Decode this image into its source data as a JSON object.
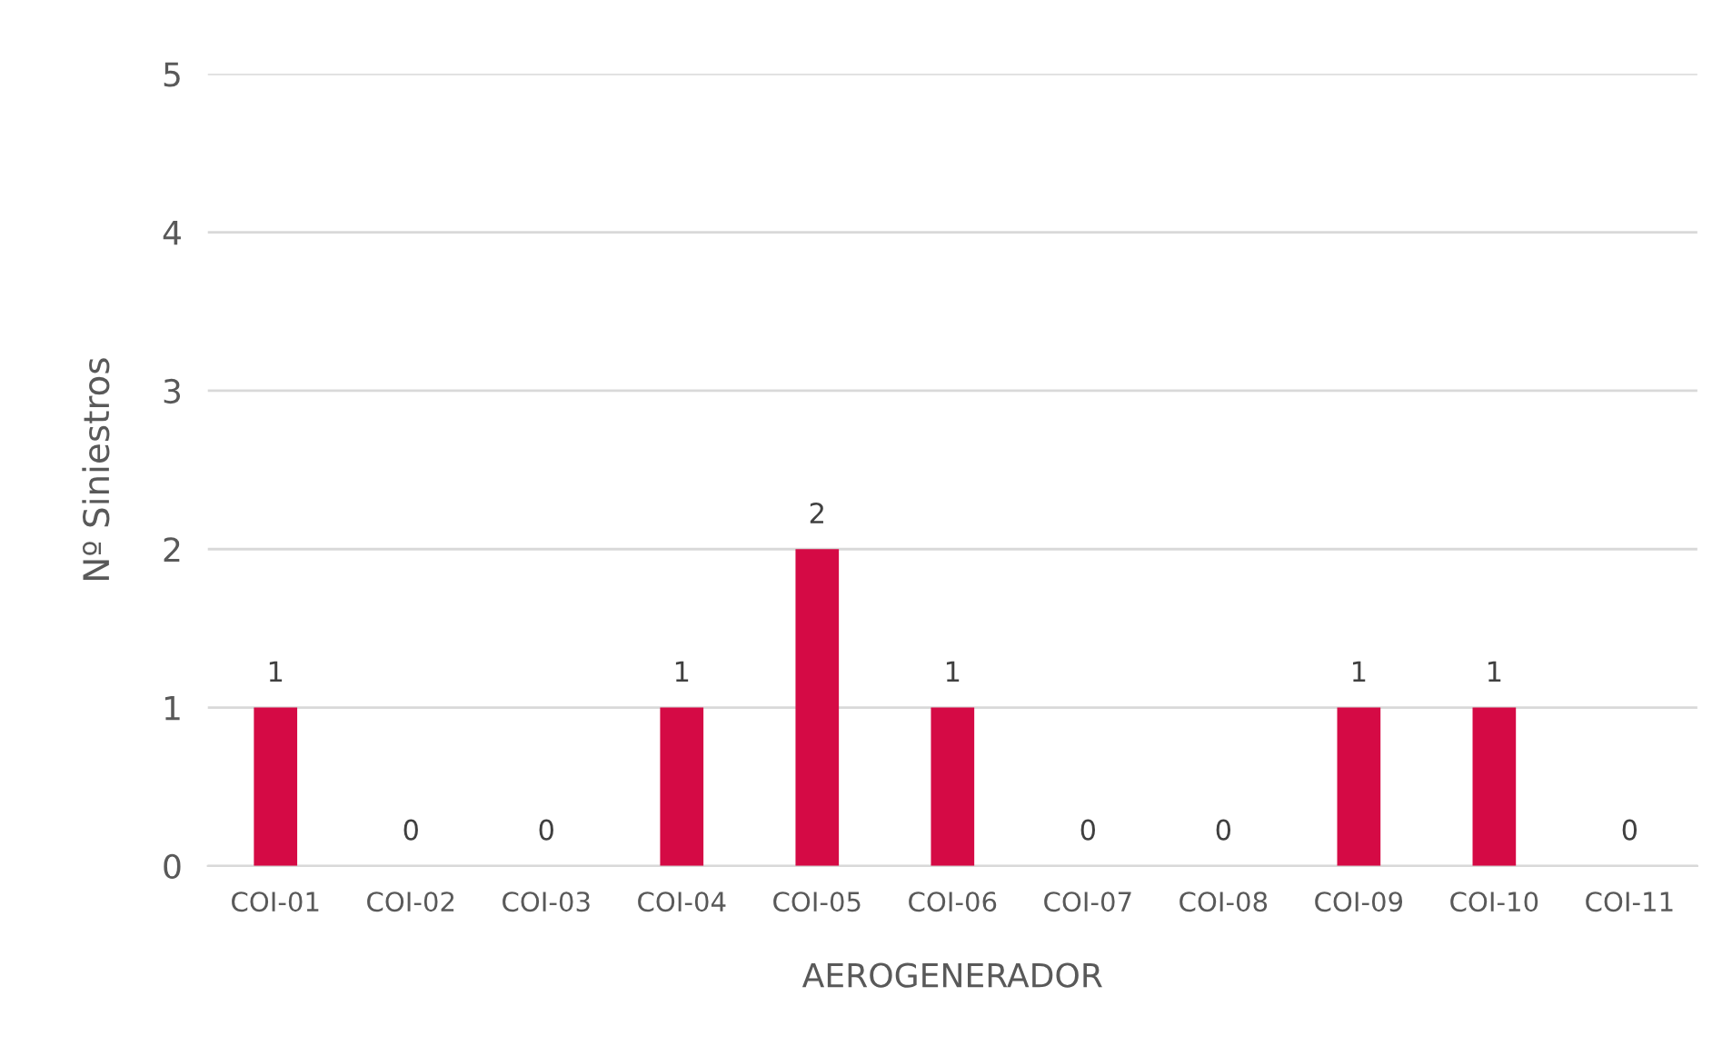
{
  "chart_data": {
    "type": "bar",
    "xlabel": "AEROGENERADOR",
    "ylabel": "Nº Siniestros",
    "categories": [
      "COI-01",
      "COI-02",
      "COI-03",
      "COI-04",
      "COI-05",
      "COI-06",
      "COI-07",
      "COI-08",
      "COI-09",
      "COI-10",
      "COI-11"
    ],
    "values": [
      1,
      0,
      0,
      1,
      2,
      1,
      0,
      0,
      1,
      1,
      0
    ],
    "color": "#d50a45",
    "ylim": [
      0,
      5
    ],
    "yticks": [
      0,
      1,
      2,
      3,
      4,
      5
    ],
    "grid": "y",
    "data_labels": true
  }
}
